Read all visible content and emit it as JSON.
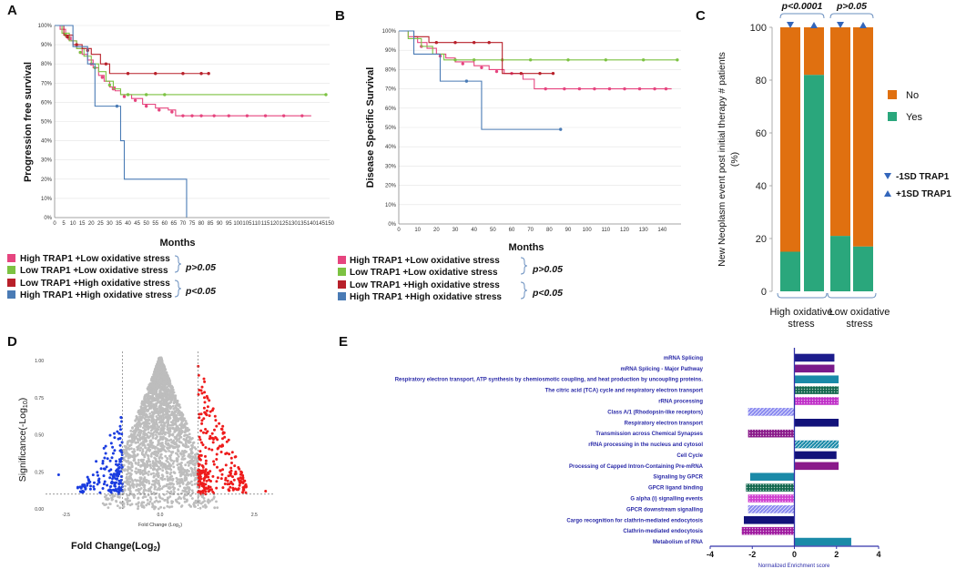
{
  "panels": {
    "a": "A",
    "b": "B",
    "c": "C",
    "d": "D",
    "e": "E"
  },
  "colors": {
    "pink": "#e6457f",
    "green": "#7cc242",
    "red": "#b8202a",
    "blue": "#4a7bb5",
    "orange": "#e07010",
    "teal": "#2aa77c",
    "navy": "#1c1c8c",
    "axisBlue": "#3333aa",
    "grey": "#bdbdbd",
    "dotRed": "#ee1c1c",
    "dotBlue": "#1a3ce0"
  },
  "legend_km": {
    "items": [
      "High TRAP1 +Low oxidative stress",
      "Low TRAP1 +Low oxidative stress",
      "Low TRAP1 +High oxidative stress",
      "High TRAP1 +High oxidative stress"
    ],
    "p_top": "p>0.05",
    "p_bottom": "p<0.05"
  },
  "chart_data": [
    {
      "id": "A",
      "type": "line",
      "subtype": "kaplan-meier",
      "xlabel": "Months",
      "ylabel": "Progression free survival",
      "xlim": [
        0,
        150
      ],
      "ylim": [
        0,
        100
      ],
      "xticks": [
        "0",
        "5",
        "10",
        "15",
        "20",
        "25",
        "30",
        "35",
        "40",
        "45",
        "50",
        "55",
        "60",
        "65",
        "70",
        "75",
        "80",
        "85",
        "90",
        "95",
        "100",
        "105",
        "110",
        "115",
        "120",
        "125",
        "130",
        "135",
        "140",
        "145",
        "150"
      ],
      "yticks": [
        "0%",
        "10%",
        "20%",
        "30%",
        "40%",
        "50%",
        "60%",
        "70%",
        "80%",
        "90%",
        "100%"
      ],
      "series": [
        {
          "name": "High TRAP1 +Low oxidative stress",
          "color": "pink",
          "steps": [
            [
              0,
              100
            ],
            [
              3,
              98
            ],
            [
              6,
              94
            ],
            [
              9,
              92
            ],
            [
              12,
              88
            ],
            [
              15,
              85
            ],
            [
              18,
              82
            ],
            [
              21,
              78
            ],
            [
              24,
              74
            ],
            [
              27,
              71
            ],
            [
              30,
              68
            ],
            [
              33,
              66
            ],
            [
              36,
              64
            ],
            [
              42,
              62
            ],
            [
              48,
              59
            ],
            [
              55,
              57
            ],
            [
              62,
              56
            ],
            [
              66,
              53
            ],
            [
              140,
              53
            ]
          ],
          "censors": [
            [
              8,
              93
            ],
            [
              14,
              86
            ],
            [
              20,
              80
            ],
            [
              26,
              73
            ],
            [
              32,
              67
            ],
            [
              38,
              63
            ],
            [
              44,
              61
            ],
            [
              50,
              58
            ],
            [
              57,
              56
            ],
            [
              64,
              55
            ],
            [
              70,
              53
            ],
            [
              75,
              53
            ],
            [
              80,
              53
            ],
            [
              87,
              53
            ],
            [
              95,
              53
            ],
            [
              105,
              53
            ],
            [
              115,
              53
            ],
            [
              125,
              53
            ],
            [
              135,
              53
            ]
          ]
        },
        {
          "name": "Low TRAP1 +Low oxidative stress",
          "color": "green",
          "steps": [
            [
              0,
              100
            ],
            [
              4,
              96
            ],
            [
              8,
              92
            ],
            [
              12,
              88
            ],
            [
              16,
              84
            ],
            [
              20,
              80
            ],
            [
              24,
              76
            ],
            [
              28,
              71
            ],
            [
              32,
              67
            ],
            [
              36,
              64
            ],
            [
              148,
              64
            ]
          ],
          "censors": [
            [
              6,
              95
            ],
            [
              14,
              86
            ],
            [
              22,
              78
            ],
            [
              30,
              69
            ],
            [
              40,
              64
            ],
            [
              50,
              64
            ],
            [
              60,
              64
            ],
            [
              148,
              64
            ]
          ]
        },
        {
          "name": "Low TRAP1 +High oxidative stress",
          "color": "red",
          "steps": [
            [
              0,
              100
            ],
            [
              5,
              95
            ],
            [
              10,
              90
            ],
            [
              15,
              88
            ],
            [
              20,
              85
            ],
            [
              25,
              80
            ],
            [
              30,
              75
            ],
            [
              84,
              75
            ]
          ],
          "censors": [
            [
              7,
              94
            ],
            [
              12,
              90
            ],
            [
              18,
              87
            ],
            [
              28,
              80
            ],
            [
              40,
              75
            ],
            [
              55,
              75
            ],
            [
              70,
              75
            ],
            [
              80,
              75
            ],
            [
              84,
              75
            ]
          ]
        },
        {
          "name": "High TRAP1 +High oxidative stress",
          "color": "blue",
          "steps": [
            [
              0,
              100
            ],
            [
              10,
              89
            ],
            [
              18,
              80
            ],
            [
              22,
              58
            ],
            [
              32,
              58
            ],
            [
              36,
              40
            ],
            [
              38,
              20
            ],
            [
              72,
              0
            ]
          ],
          "censors": [
            [
              34,
              58
            ]
          ]
        }
      ]
    },
    {
      "id": "B",
      "type": "line",
      "subtype": "kaplan-meier",
      "xlabel": "Months",
      "ylabel": "Disease Specific Survival",
      "xlim": [
        0,
        150
      ],
      "ylim": [
        0,
        100
      ],
      "xticks": [
        "0",
        "10",
        "20",
        "30",
        "40",
        "50",
        "60",
        "70",
        "80",
        "90",
        "100",
        "110",
        "120",
        "130",
        "140"
      ],
      "yticks": [
        "0%",
        "10%",
        "20%",
        "30%",
        "40%",
        "50%",
        "60%",
        "70%",
        "80%",
        "90%",
        "100%"
      ],
      "series": [
        {
          "name": "High TRAP1 +Low oxidative stress",
          "color": "pink",
          "steps": [
            [
              0,
              100
            ],
            [
              5,
              97
            ],
            [
              10,
              94
            ],
            [
              15,
              91
            ],
            [
              20,
              88
            ],
            [
              25,
              86
            ],
            [
              30,
              84
            ],
            [
              40,
              82
            ],
            [
              48,
              80
            ],
            [
              56,
              78
            ],
            [
              66,
              75
            ],
            [
              72,
              70
            ],
            [
              145,
              70
            ]
          ],
          "censors": [
            [
              12,
              92
            ],
            [
              22,
              87
            ],
            [
              34,
              83
            ],
            [
              44,
              81
            ],
            [
              52,
              79
            ],
            [
              60,
              78
            ],
            [
              78,
              70
            ],
            [
              88,
              70
            ],
            [
              96,
              70
            ],
            [
              104,
              70
            ],
            [
              112,
              70
            ],
            [
              120,
              70
            ],
            [
              128,
              70
            ],
            [
              136,
              70
            ],
            [
              142,
              70
            ]
          ]
        },
        {
          "name": "Low TRAP1 +Low oxidative stress",
          "color": "green",
          "steps": [
            [
              0,
              100
            ],
            [
              5,
              96
            ],
            [
              12,
              92
            ],
            [
              18,
              88
            ],
            [
              24,
              85
            ],
            [
              148,
              85
            ]
          ],
          "censors": [
            [
              30,
              85
            ],
            [
              40,
              85
            ],
            [
              55,
              85
            ],
            [
              70,
              85
            ],
            [
              90,
              85
            ],
            [
              110,
              85
            ],
            [
              130,
              85
            ],
            [
              148,
              85
            ]
          ]
        },
        {
          "name": "Low TRAP1 +High oxidative stress",
          "color": "red",
          "steps": [
            [
              0,
              100
            ],
            [
              8,
              97
            ],
            [
              16,
              94
            ],
            [
              55,
              94
            ],
            [
              55,
              78
            ],
            [
              82,
              78
            ]
          ],
          "censors": [
            [
              20,
              94
            ],
            [
              30,
              94
            ],
            [
              40,
              94
            ],
            [
              48,
              94
            ],
            [
              65,
              78
            ],
            [
              75,
              78
            ],
            [
              82,
              78
            ]
          ]
        },
        {
          "name": "High TRAP1 +High oxidative stress",
          "color": "blue",
          "steps": [
            [
              0,
              100
            ],
            [
              8,
              88
            ],
            [
              22,
              88
            ],
            [
              22,
              74
            ],
            [
              44,
              74
            ],
            [
              44,
              49
            ],
            [
              86,
              49
            ]
          ],
          "censors": [
            [
              36,
              74
            ],
            [
              86,
              49
            ]
          ]
        }
      ]
    },
    {
      "id": "C",
      "type": "bar",
      "subtype": "stacked-percent",
      "ylabel": "New Neoplasm event post initial therapy # patients (%)",
      "ylim": [
        0,
        100
      ],
      "yticks": [
        "0",
        "20",
        "40",
        "60",
        "80",
        "100"
      ],
      "categories": [
        "-1SD TRAP1",
        "+1SD TRAP1",
        "-1SD TRAP1",
        "+1SD TRAP1"
      ],
      "groups": [
        "High oxidative stress",
        "Low oxidative stress"
      ],
      "series": [
        {
          "name": "Yes",
          "color": "teal",
          "values": [
            15,
            82,
            21,
            17
          ]
        },
        {
          "name": "No",
          "color": "orange",
          "values": [
            85,
            18,
            79,
            83
          ]
        }
      ],
      "pvalues": [
        "p<0.0001",
        "p>0.05"
      ],
      "legend": [
        "No",
        "Yes"
      ],
      "marker_legend": [
        "-1SD TRAP1",
        "+1SD TRAP1"
      ]
    },
    {
      "id": "D",
      "type": "scatter",
      "subtype": "volcano",
      "xlabel": "Fold Change (Log2)",
      "ylabel": "Significance(-Log10)",
      "outer_xlabel": "Fold Change(Log2)",
      "xlim": [
        -3,
        3
      ],
      "ylim": [
        0,
        1.05
      ],
      "xticks": [
        "-2.5",
        "0.0",
        "2.5"
      ],
      "yticks": [
        "0.00",
        "0.25",
        "0.50",
        "0.75",
        "1.00"
      ],
      "thresholds": {
        "fold_change": [
          -1,
          1
        ],
        "significance": 0.1
      },
      "outlier_points": [
        [
          2.8,
          0.12
        ],
        [
          -2.7,
          0.23
        ]
      ]
    },
    {
      "id": "E",
      "type": "bar",
      "subtype": "horizontal",
      "xlabel": "Normalized Enrichment score",
      "xlim": [
        -4,
        4
      ],
      "xticks": [
        "-4",
        "-2",
        "0",
        "2",
        "4"
      ],
      "bars": [
        {
          "label": "mRNA Splicing",
          "value": 1.9,
          "color": "navy",
          "pattern": "solid"
        },
        {
          "label": "mRNA Splicing - Major Pathway",
          "value": 1.9,
          "color": "#7a1a8a",
          "pattern": "solid"
        },
        {
          "label": "Respiratory electron transport, ATP synthesis by chemiosmotic coupling, and heat production by uncoupling proteins.",
          "value": 2.1,
          "color": "#1a8aa8",
          "pattern": "solid"
        },
        {
          "label": "The citric acid (TCA) cycle and respiratory electron transport",
          "value": 2.1,
          "color": "#13684e",
          "pattern": "dots"
        },
        {
          "label": "rRNA processing",
          "value": 2.1,
          "color": "#c030c8",
          "pattern": "dots"
        },
        {
          "label": "Class A/1 (Rhodopsin-like receptors)",
          "value": -2.2,
          "color": "#8a8af0",
          "pattern": "diag"
        },
        {
          "label": "Respiratory electron transport",
          "value": 2.1,
          "color": "#12127a",
          "pattern": "solid"
        },
        {
          "label": "Transmission across Chemical Synapses",
          "value": -2.2,
          "color": "#8a1a8a",
          "pattern": "dots"
        },
        {
          "label": "rRNA processing in the nucleus and cytosol",
          "value": 2.1,
          "color": "#1a8aa8",
          "pattern": "diag"
        },
        {
          "label": "Cell Cycle",
          "value": 2.0,
          "color": "#12127a",
          "pattern": "solid"
        },
        {
          "label": "Processing of Capped Intron-Containing Pre-mRNA",
          "value": 2.1,
          "color": "#8a1a8a",
          "pattern": "solid"
        },
        {
          "label": "Signaling by GPCR",
          "value": -2.1,
          "color": "#1a8aa8",
          "pattern": "solid"
        },
        {
          "label": "GPCR ligand binding",
          "value": -2.3,
          "color": "#12684e",
          "pattern": "dots"
        },
        {
          "label": "G alpha (i) signalling events",
          "value": -2.2,
          "color": "#d040d0",
          "pattern": "dots"
        },
        {
          "label": "GPCR downstream signalling",
          "value": -2.2,
          "color": "#8a8af0",
          "pattern": "diag"
        },
        {
          "label": "Cargo recognition for clathrin-mediated endocytosis",
          "value": -2.4,
          "color": "#12127a",
          "pattern": "solid"
        },
        {
          "label": "Clathrin-mediated endocytosis",
          "value": -2.5,
          "color": "#a01aa0",
          "pattern": "dots"
        },
        {
          "label": "Metabolism of RNA",
          "value": 2.7,
          "color": "#1a8aa8",
          "pattern": "solid"
        }
      ]
    }
  ]
}
